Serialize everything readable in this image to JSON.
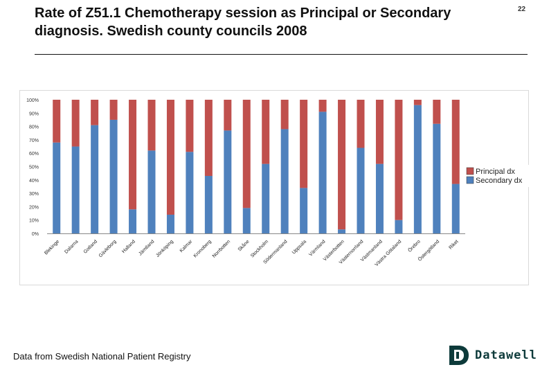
{
  "page_number": "22",
  "title": "Rate of Z51.1 Chemotherapy session as Principal or Secondary diagnosis. Swedish county councils 2008",
  "footer": "Data from Swedish National Patient Registry",
  "logo": {
    "text": "Datawell",
    "mark": "D"
  },
  "colors": {
    "principal": "#c0504d",
    "secondary": "#4f81bd",
    "grid": "#d9d9d9",
    "axis": "#888888"
  },
  "chart_data": {
    "type": "bar",
    "stacked": true,
    "percent": true,
    "title": "Rate of Z51.1 Chemotherapy session as Principal or Secondary diagnosis. Swedish county councils 2008",
    "xlabel": "",
    "ylabel": "",
    "ylim": [
      0,
      100
    ],
    "yticks": [
      "0%",
      "10%",
      "20%",
      "30%",
      "40%",
      "50%",
      "60%",
      "70%",
      "80%",
      "90%",
      "100%"
    ],
    "categories": [
      "Blekinge",
      "Dalarna",
      "Gotland",
      "Gävleborg",
      "Halland",
      "Jämtland",
      "Jönköping",
      "Kalmar",
      "Kronoberg",
      "Norrbotten",
      "Skåne",
      "Stockholm",
      "Södermanland",
      "Uppsala",
      "Värmland",
      "Västerbotten",
      "Västernorrland",
      "Västmanland",
      "Västra Götaland",
      "Örebro",
      "Östergötland",
      "Riket"
    ],
    "series": [
      {
        "name": "Secondary dx",
        "values": [
          68,
          65,
          81,
          85,
          18,
          62,
          14,
          61,
          43,
          77,
          19,
          52,
          78,
          34,
          91,
          3,
          64,
          52,
          10,
          96,
          82,
          37
        ]
      },
      {
        "name": "Principal dx",
        "values": [
          32,
          35,
          19,
          15,
          82,
          38,
          86,
          39,
          57,
          23,
          81,
          48,
          22,
          66,
          9,
          97,
          36,
          48,
          90,
          4,
          18,
          63
        ]
      }
    ],
    "legend": [
      "Principal dx",
      "Secondary dx"
    ],
    "legend_position": "right",
    "grid": false
  }
}
